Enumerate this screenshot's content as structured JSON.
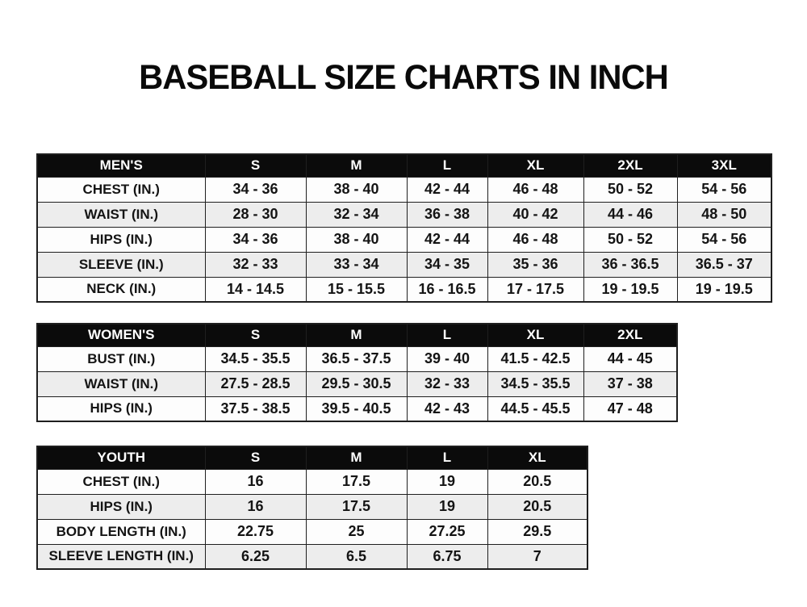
{
  "title": "BASEBALL SIZE CHARTS IN INCH",
  "colors": {
    "header_bg": "#0b0b0b",
    "header_text": "#ffffff",
    "row_white": "#fdfdfd",
    "row_gray": "#ededed",
    "border": "#1f1f1f",
    "title_color": "#0a0a0a",
    "page_bg": "#ffffff"
  },
  "chart_data": [
    {
      "type": "table",
      "name": "mens",
      "columns": [
        "MEN'S",
        "S",
        "M",
        "L",
        "XL",
        "2XL",
        "3XL"
      ],
      "rows": [
        [
          "CHEST (IN.)",
          "34 - 36",
          "38 - 40",
          "42 - 44",
          "46 - 48",
          "50 - 52",
          "54 - 56"
        ],
        [
          "WAIST (IN.)",
          "28 - 30",
          "32 - 34",
          "36 - 38",
          "40 - 42",
          "44 - 46",
          "48 - 50"
        ],
        [
          "HIPS (IN.)",
          "34 - 36",
          "38 - 40",
          "42 - 44",
          "46 - 48",
          "50 - 52",
          "54 - 56"
        ],
        [
          "SLEEVE (IN.)",
          "32 - 33",
          "33 - 34",
          "34 - 35",
          "35 - 36",
          "36 - 36.5",
          "36.5 - 37"
        ],
        [
          "NECK (IN.)",
          "14 - 14.5",
          "15 - 15.5",
          "16 - 16.5",
          "17 - 17.5",
          "19 - 19.5",
          "19 - 19.5"
        ]
      ]
    },
    {
      "type": "table",
      "name": "womens",
      "columns": [
        "WOMEN'S",
        "S",
        "M",
        "L",
        "XL",
        "2XL"
      ],
      "rows": [
        [
          "BUST (IN.)",
          "34.5 - 35.5",
          "36.5 - 37.5",
          "39 - 40",
          "41.5 - 42.5",
          "44 - 45"
        ],
        [
          "WAIST (IN.)",
          "27.5 - 28.5",
          "29.5 - 30.5",
          "32 - 33",
          "34.5 - 35.5",
          "37 - 38"
        ],
        [
          "HIPS (IN.)",
          "37.5 - 38.5",
          "39.5 - 40.5",
          "42 - 43",
          "44.5 - 45.5",
          "47 - 48"
        ]
      ]
    },
    {
      "type": "table",
      "name": "youth",
      "columns": [
        "YOUTH",
        "S",
        "M",
        "L",
        "XL"
      ],
      "rows": [
        [
          "CHEST (IN.)",
          "16",
          "17.5",
          "19",
          "20.5"
        ],
        [
          "HIPS (IN.)",
          "16",
          "17.5",
          "19",
          "20.5"
        ],
        [
          "BODY LENGTH (IN.)",
          "22.75",
          "25",
          "27.25",
          "29.5"
        ],
        [
          "SLEEVE LENGTH (IN.)",
          "6.25",
          "6.5",
          "6.75",
          "7"
        ]
      ]
    }
  ]
}
